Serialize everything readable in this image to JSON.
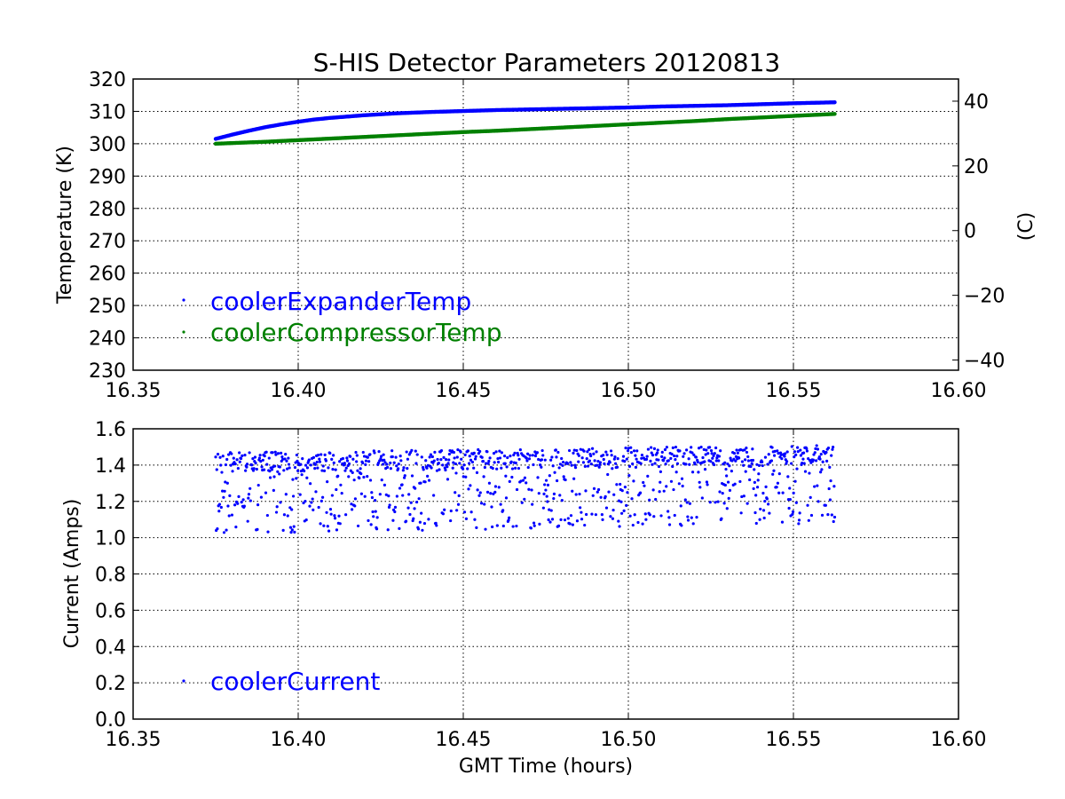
{
  "figure": {
    "title": "S-HIS Detector Parameters 20120813",
    "xlabel": "GMT Time (hours)"
  },
  "colors": {
    "expander": "#0000ff",
    "compressor": "#008000",
    "current": "#0000ff",
    "axes": "#000000",
    "grid": "#000000"
  },
  "chart_data": [
    {
      "type": "scatter",
      "xlabel": "",
      "ylabel": "Temperature (K)",
      "y2label": "(C)",
      "xlim": [
        16.35,
        16.6
      ],
      "ylim": [
        230,
        320
      ],
      "y2lim": [
        -43.15,
        46.85
      ],
      "xticks": [
        "16.35",
        "16.40",
        "16.45",
        "16.50",
        "16.55",
        "16.60"
      ],
      "yticks": [
        "230",
        "240",
        "250",
        "260",
        "270",
        "280",
        "290",
        "300",
        "310",
        "320"
      ],
      "y2ticks": [
        "−40",
        "−20",
        "0",
        "20",
        "40"
      ],
      "grid": true,
      "legend": "lower-left",
      "series": [
        {
          "name": "coolerExpanderTemp",
          "x": [
            16.375,
            16.38,
            16.385,
            16.39,
            16.395,
            16.4,
            16.405,
            16.41,
            16.415,
            16.42,
            16.43,
            16.44,
            16.45,
            16.46,
            16.47,
            16.48,
            16.49,
            16.5,
            16.51,
            16.52,
            16.53,
            16.54,
            16.55,
            16.5625
          ],
          "y": [
            301.5,
            302.8,
            304.0,
            305.1,
            306.0,
            306.8,
            307.5,
            308.0,
            308.4,
            308.8,
            309.4,
            309.8,
            310.1,
            310.4,
            310.6,
            310.8,
            311.0,
            311.2,
            311.5,
            311.7,
            311.9,
            312.2,
            312.5,
            312.8
          ]
        },
        {
          "name": "coolerCompressorTemp",
          "x": [
            16.375,
            16.39,
            16.4,
            16.41,
            16.42,
            16.43,
            16.44,
            16.45,
            16.46,
            16.47,
            16.48,
            16.49,
            16.5,
            16.51,
            16.52,
            16.53,
            16.54,
            16.55,
            16.5625
          ],
          "y": [
            300.0,
            300.6,
            301.1,
            301.6,
            302.1,
            302.6,
            303.1,
            303.6,
            304.0,
            304.5,
            305.0,
            305.5,
            306.0,
            306.5,
            307.0,
            307.6,
            308.1,
            308.6,
            309.2
          ]
        }
      ]
    },
    {
      "type": "scatter",
      "xlabel": "GMT Time (hours)",
      "ylabel": "Current (Amps)",
      "xlim": [
        16.35,
        16.6
      ],
      "ylim": [
        0.0,
        1.6
      ],
      "xticks": [
        "16.35",
        "16.40",
        "16.45",
        "16.50",
        "16.55",
        "16.60"
      ],
      "yticks": [
        "0.0",
        "0.2",
        "0.4",
        "0.6",
        "0.8",
        "1.0",
        "1.2",
        "1.4",
        "1.6"
      ],
      "grid": true,
      "legend": "lower-left",
      "series": [
        {
          "name": "coolerCurrent",
          "x_range": [
            16.375,
            16.5625
          ],
          "y_range_start": [
            1.02,
            1.47
          ],
          "y_range_end": [
            1.08,
            1.51
          ]
        }
      ]
    }
  ]
}
